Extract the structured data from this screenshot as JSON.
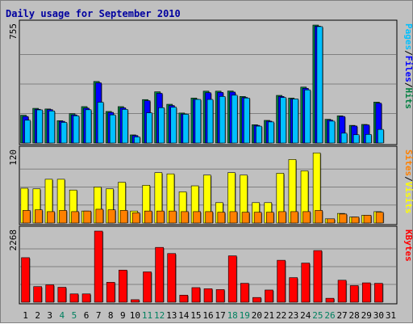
{
  "chart_data": {
    "type": "bar",
    "title": "Daily usage for September 2010",
    "categories": [
      "1",
      "2",
      "3",
      "4",
      "5",
      "6",
      "7",
      "8",
      "9",
      "10",
      "11",
      "12",
      "13",
      "14",
      "15",
      "16",
      "17",
      "18",
      "19",
      "20",
      "21",
      "22",
      "23",
      "24",
      "25",
      "26",
      "27",
      "28",
      "29",
      "30",
      "31"
    ],
    "weekend_days": [
      "4",
      "5",
      "11",
      "12",
      "18",
      "19",
      "25",
      "26"
    ],
    "panels": [
      {
        "id": "hits",
        "ymax_label": "755",
        "ymax": 755,
        "legend": [
          "Pages",
          "/",
          "Files",
          "/",
          "Hits"
        ],
        "legend_colors": [
          "#00c0ff",
          "#000000",
          "#0000ff",
          "#000000",
          "#008040"
        ],
        "series": [
          {
            "name": "Hits",
            "color": "#008040",
            "values": [
              178,
              222,
              218,
              143,
              188,
              233,
              394,
              202,
              233,
              52,
              278,
              328,
              248,
              192,
              288,
              332,
              332,
              333,
              298,
              117,
              145,
              305,
              288,
              358,
              755,
              152,
              174,
              113,
              119,
              262
            ]
          },
          {
            "name": "Files",
            "color": "#0000ff",
            "values": [
              170,
              216,
              214,
              139,
              180,
              223,
              385,
              196,
              225,
              48,
              271,
              318,
              240,
              186,
              280,
              322,
              324,
              326,
              292,
              113,
              140,
              298,
              282,
              350,
              748,
              147,
              170,
              109,
              116,
              255
            ]
          },
          {
            "name": "Pages",
            "color": "#00c0ff",
            "values": [
              146,
              212,
              205,
              132,
              174,
              213,
              261,
              180,
              215,
              39,
              193,
              226,
              229,
              184,
              279,
              279,
              298,
              306,
              288,
              108,
              135,
              291,
              282,
              340,
              745,
              140,
              63,
              53,
              55,
              87
            ]
          }
        ]
      },
      {
        "id": "visits",
        "ymax_label": "120",
        "ymax": 120,
        "legend": [
          "Sites",
          "/",
          "Visits"
        ],
        "legend_colors": [
          "#ff8000",
          "#000000",
          "#ffff00"
        ],
        "series": [
          {
            "name": "Visits",
            "color": "#ffff00",
            "values": [
              58,
              57,
              73,
              73,
              55,
              20,
              60,
              57,
              68,
              20,
              63,
              84,
              82,
              52,
              62,
              80,
              34,
              84,
              80,
              34,
              34,
              83,
              106,
              87,
              117,
              7,
              16,
              10,
              13,
              19
            ]
          },
          {
            "name": "Sites",
            "color": "#ff8000",
            "values": [
              21,
              22,
              19,
              21,
              19,
              20,
              23,
              22,
              21,
              17,
              20,
              20,
              20,
              19,
              19,
              19,
              18,
              19,
              18,
              18,
              18,
              19,
              19,
              19,
              21,
              7,
              15,
              10,
              13,
              18
            ]
          }
        ]
      },
      {
        "id": "kbytes",
        "ymax_label": "2268",
        "ymax": 2268,
        "legend": [
          "KBytes"
        ],
        "legend_colors": [
          "#ff0000"
        ],
        "series": [
          {
            "name": "KBytes",
            "color": "#ff0000",
            "values": [
              1420,
              497,
              553,
              476,
              264,
              264,
              2268,
              634,
              1024,
              80,
              967,
              1748,
              1552,
              225,
              465,
              429,
              402,
              1478,
              603,
              150,
              388,
              1337,
              783,
              1248,
              1647,
              125,
              701,
              529,
              617,
              602,
              0
            ]
          }
        ]
      }
    ]
  }
}
